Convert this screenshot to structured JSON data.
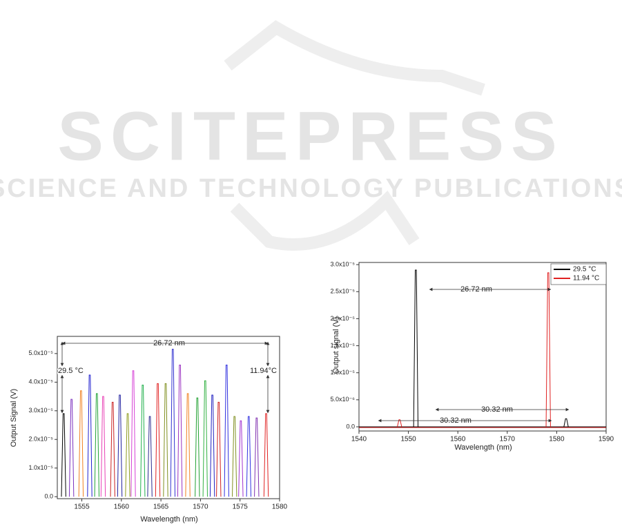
{
  "watermark": {
    "title": "SCITEPRESS",
    "subtitle": "SCIENCE AND TECHNOLOGY PUBLICATIONS"
  },
  "chart_data": [
    {
      "type": "line",
      "x_label": "Wavelength (nm)",
      "y_label": "Output Signal (V)",
      "x": [
        1552.7,
        1553.7,
        1554.9,
        1556.0,
        1556.9,
        1557.7,
        1558.9,
        1559.8,
        1560.8,
        1561.5,
        1562.7,
        1563.6,
        1564.6,
        1565.6,
        1566.5,
        1567.4,
        1568.4,
        1569.6,
        1570.6,
        1571.5,
        1572.3,
        1573.3,
        1574.3,
        1575.1,
        1576.1,
        1577.1,
        1578.3
      ],
      "values": [
        2.9e-05,
        3.4e-05,
        3.7e-05,
        4.25e-05,
        3.6e-05,
        3.5e-05,
        3.3e-05,
        3.55e-05,
        2.9e-05,
        4.4e-05,
        3.9e-05,
        2.8e-05,
        3.95e-05,
        3.95e-05,
        5.15e-05,
        4.6e-05,
        3.6e-05,
        3.45e-05,
        4.05e-05,
        3.55e-05,
        3.3e-05,
        4.6e-05,
        2.8e-05,
        2.65e-05,
        2.8e-05,
        2.75e-05,
        2.9e-05
      ],
      "colors": [
        "#000000",
        "#7b2fbe",
        "#f07f1d",
        "#1f1fcf",
        "#21a336",
        "#e83fb5",
        "#c92020",
        "#1f1f9f",
        "#8d9a1e",
        "#d63fd6",
        "#21b04c",
        "#2a2a8f",
        "#e02020",
        "#7f8f1f",
        "#3030d0",
        "#9a30c0",
        "#f08020",
        "#20a030",
        "#30b040",
        "#2020c0",
        "#d02020",
        "#2f2fdf",
        "#808f20",
        "#a030d0",
        "#3030e0",
        "#8030b0",
        "#e02020"
      ],
      "xlim": [
        1551.9,
        1580
      ],
      "ylim": [
        -7e-07,
        5.6e-05
      ],
      "xticks": [
        1555,
        1560,
        1565,
        1570,
        1575,
        1580
      ],
      "yticks": [
        {
          "value": 0,
          "label": "0.0"
        },
        {
          "value": 1e-05,
          "label": "1.0x10⁻⁵"
        },
        {
          "value": 2e-05,
          "label": "2.0x10⁻⁵"
        },
        {
          "value": 3e-05,
          "label": "3.0x10⁻⁵"
        },
        {
          "value": 4e-05,
          "label": "4.0x10⁻⁵"
        },
        {
          "value": 5e-05,
          "label": "5.0x10⁻⁵"
        }
      ],
      "annotations": [
        "26.72 nm",
        "29.5 °C",
        "11.94°C"
      ]
    },
    {
      "type": "line",
      "x_label": "Wavelength (nm)",
      "y_label": "Output signal (V)",
      "series": [
        {
          "name": "29.5 °C",
          "color": "#000000",
          "x": [
            1551.5,
            1581.9
          ],
          "values": [
            2.9e-05,
            1.5e-06
          ]
        },
        {
          "name": "11.94 °C",
          "color": "#e02020",
          "x": [
            1548.2,
            1578.3
          ],
          "values": [
            1.3e-06,
            2.85e-05
          ]
        }
      ],
      "xlim": [
        1540,
        1590
      ],
      "ylim": [
        -7.7e-07,
        3.04e-05
      ],
      "xticks": [
        1540,
        1550,
        1560,
        1570,
        1580,
        1590
      ],
      "yticks": [
        {
          "value": 0,
          "label": "0.0"
        },
        {
          "value": 5e-06,
          "label": "5.0x10⁻⁶"
        },
        {
          "value": 1e-05,
          "label": "1.0x10⁻⁵"
        },
        {
          "value": 1.5e-05,
          "label": "1.5x10⁻⁵"
        },
        {
          "value": 2e-05,
          "label": "2.0x10⁻⁵"
        },
        {
          "value": 2.5e-05,
          "label": "2.5x10⁻⁵"
        },
        {
          "value": 3e-05,
          "label": "3.0x10⁻⁵"
        }
      ],
      "legend": "top-right",
      "annotations": [
        "26.72 nm",
        "30.32 nm",
        "30.32 nm"
      ]
    }
  ]
}
